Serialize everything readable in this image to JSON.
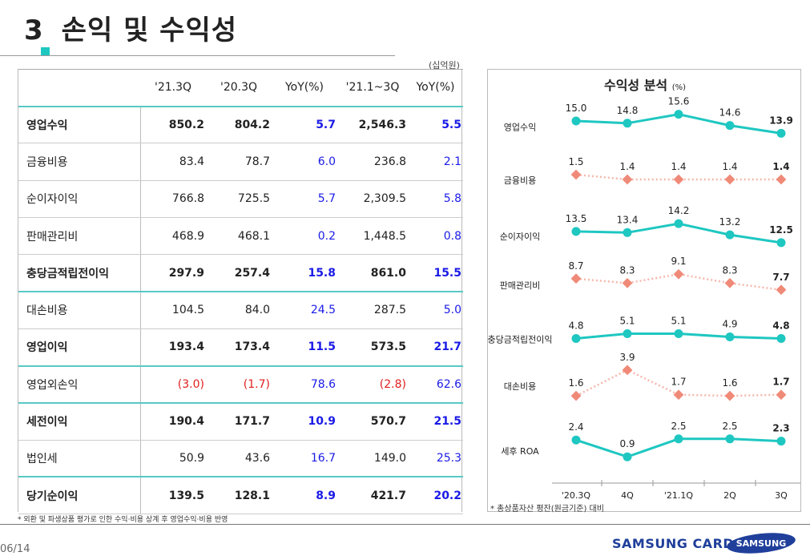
{
  "page": {
    "title_num": "3",
    "title_text": "손익 및 수익성",
    "unit": "(십억원)",
    "page_num": "06/14",
    "brand": "SAMSUNG CARD",
    "logo_text": "SAMSUNG"
  },
  "table": {
    "headers": [
      "",
      "'21.3Q",
      "'20.3Q",
      "YoY(%)",
      "'21.1~3Q",
      "YoY(%)"
    ],
    "rows": [
      {
        "label": "영업수익",
        "v1": "850.2",
        "v2": "804.2",
        "yoy1": "5.7",
        "v3": "2,546.3",
        "yoy2": "5.5"
      },
      {
        "label": "금융비용",
        "v1": "83.4",
        "v2": "78.7",
        "yoy1": "6.0",
        "v3": "236.8",
        "yoy2": "2.1"
      },
      {
        "label": "순이자이익",
        "v1": "766.8",
        "v2": "725.5",
        "yoy1": "5.7",
        "v3": "2,309.5",
        "yoy2": "5.8"
      },
      {
        "label": "판매관리비",
        "v1": "468.9",
        "v2": "468.1",
        "yoy1": "0.2",
        "v3": "1,448.5",
        "yoy2": "0.8"
      },
      {
        "label": "충당금적립전이익",
        "v1": "297.9",
        "v2": "257.4",
        "yoy1": "15.8",
        "v3": "861.0",
        "yoy2": "15.5"
      },
      {
        "label": "대손비용",
        "v1": "104.5",
        "v2": "84.0",
        "yoy1": "24.5",
        "v3": "287.5",
        "yoy2": "5.0"
      },
      {
        "label": "영업이익",
        "v1": "193.4",
        "v2": "173.4",
        "yoy1": "11.5",
        "v3": "573.5",
        "yoy2": "21.7"
      },
      {
        "label": "영업외손익",
        "v1": "(3.0)",
        "v2": "(1.7)",
        "yoy1": "78.6",
        "v3": "(2.8)",
        "yoy2": "62.6"
      },
      {
        "label": "세전이익",
        "v1": "190.4",
        "v2": "171.7",
        "yoy1": "10.9",
        "v3": "570.7",
        "yoy2": "21.5"
      },
      {
        "label": "법인세",
        "v1": "50.9",
        "v2": "43.6",
        "yoy1": "16.7",
        "v3": "149.0",
        "yoy2": "25.3"
      },
      {
        "label": "당기순이익",
        "v1": "139.5",
        "v2": "128.1",
        "yoy1": "8.9",
        "v3": "421.7",
        "yoy2": "20.2"
      }
    ],
    "footnote": "* 외환 및 파생상품 평가로 인한 수익·비용 상계 후 영업수익·비용 반영"
  },
  "chart_data": {
    "type": "line",
    "title": "수익성 분석",
    "title_unit": "(%)",
    "categories": [
      "'20.3Q",
      "4Q",
      "'21.1Q",
      "2Q",
      "3Q"
    ],
    "series": [
      {
        "name": "영업수익",
        "values": [
          15.0,
          14.8,
          15.6,
          14.6,
          13.9
        ],
        "labels": [
          "15.0",
          "14.8",
          "15.6",
          "14.6",
          "13.9"
        ],
        "color": "#1fc7c1",
        "style": "solid"
      },
      {
        "name": "금융비용",
        "values": [
          1.5,
          1.4,
          1.4,
          1.4,
          1.4
        ],
        "labels": [
          "1.5",
          "1.4",
          "1.4",
          "1.4",
          "1.4"
        ],
        "color": "#f08a78",
        "style": "dotted"
      },
      {
        "name": "순이자이익",
        "values": [
          13.5,
          13.4,
          14.2,
          13.2,
          12.5
        ],
        "labels": [
          "13.5",
          "13.4",
          "14.2",
          "13.2",
          "12.5"
        ],
        "color": "#1fc7c1",
        "style": "solid"
      },
      {
        "name": "판매관리비",
        "values": [
          8.7,
          8.3,
          9.1,
          8.3,
          7.7
        ],
        "labels": [
          "8.7",
          "8.3",
          "9.1",
          "8.3",
          "7.7"
        ],
        "color": "#f08a78",
        "style": "dotted"
      },
      {
        "name": "충당금적립전이익",
        "values": [
          4.8,
          5.1,
          5.1,
          4.9,
          4.8
        ],
        "labels": [
          "4.8",
          "5.1",
          "5.1",
          "4.9",
          "4.8"
        ],
        "color": "#1fc7c1",
        "style": "solid"
      },
      {
        "name": "대손비용",
        "values": [
          1.6,
          3.9,
          1.7,
          1.6,
          1.7
        ],
        "labels": [
          "1.6",
          "3.9",
          "1.7",
          "1.6",
          "1.7"
        ],
        "color": "#f08a78",
        "style": "dotted"
      },
      {
        "name": "세후 ROA",
        "values": [
          2.4,
          0.9,
          2.5,
          2.5,
          2.3
        ],
        "labels": [
          "2.4",
          "0.9",
          "2.5",
          "2.5",
          "2.3"
        ],
        "color": "#1fc7c1",
        "style": "solid"
      }
    ],
    "note": "* 총상품자산 평잔(원금기준) 대비"
  }
}
